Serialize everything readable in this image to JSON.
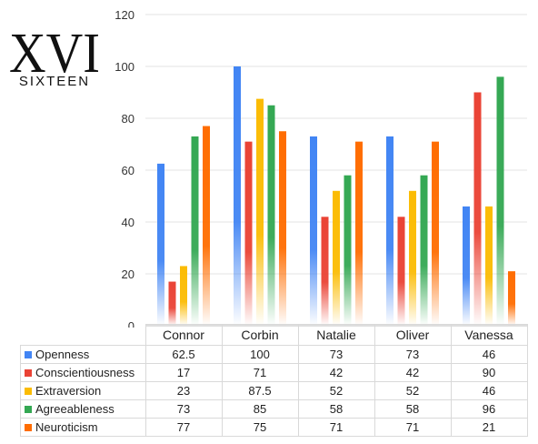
{
  "logo": {
    "numeral": "XVI",
    "word": "SIXTEEN"
  },
  "chart_data": {
    "type": "bar",
    "categories": [
      "Connor",
      "Corbin",
      "Natalie",
      "Oliver",
      "Vanessa"
    ],
    "ylim": [
      0,
      120
    ],
    "yticks": [
      0,
      20,
      40,
      60,
      80,
      100,
      120
    ],
    "grid": true,
    "legend": "data-table",
    "series": [
      {
        "name": "Openness",
        "color": "#4285f4",
        "values": [
          62.5,
          100,
          73,
          73,
          46
        ]
      },
      {
        "name": "Conscientiousness",
        "color": "#ea4335",
        "values": [
          17,
          71,
          42,
          42,
          90
        ]
      },
      {
        "name": "Extraversion",
        "color": "#fbbc04",
        "values": [
          23,
          87.5,
          52,
          52,
          46
        ]
      },
      {
        "name": "Agreeableness",
        "color": "#34a853",
        "values": [
          73,
          85,
          58,
          58,
          96
        ]
      },
      {
        "name": "Neuroticism",
        "color": "#ff6d01",
        "values": [
          77,
          75,
          71,
          71,
          21
        ]
      }
    ],
    "table": [
      [
        "62.5",
        "100",
        "73",
        "73",
        "46"
      ],
      [
        "17",
        "71",
        "42",
        "42",
        "90"
      ],
      [
        "23",
        "87.5",
        "52",
        "52",
        "46"
      ],
      [
        "73",
        "85",
        "58",
        "58",
        "96"
      ],
      [
        "77",
        "75",
        "71",
        "71",
        "21"
      ]
    ]
  }
}
